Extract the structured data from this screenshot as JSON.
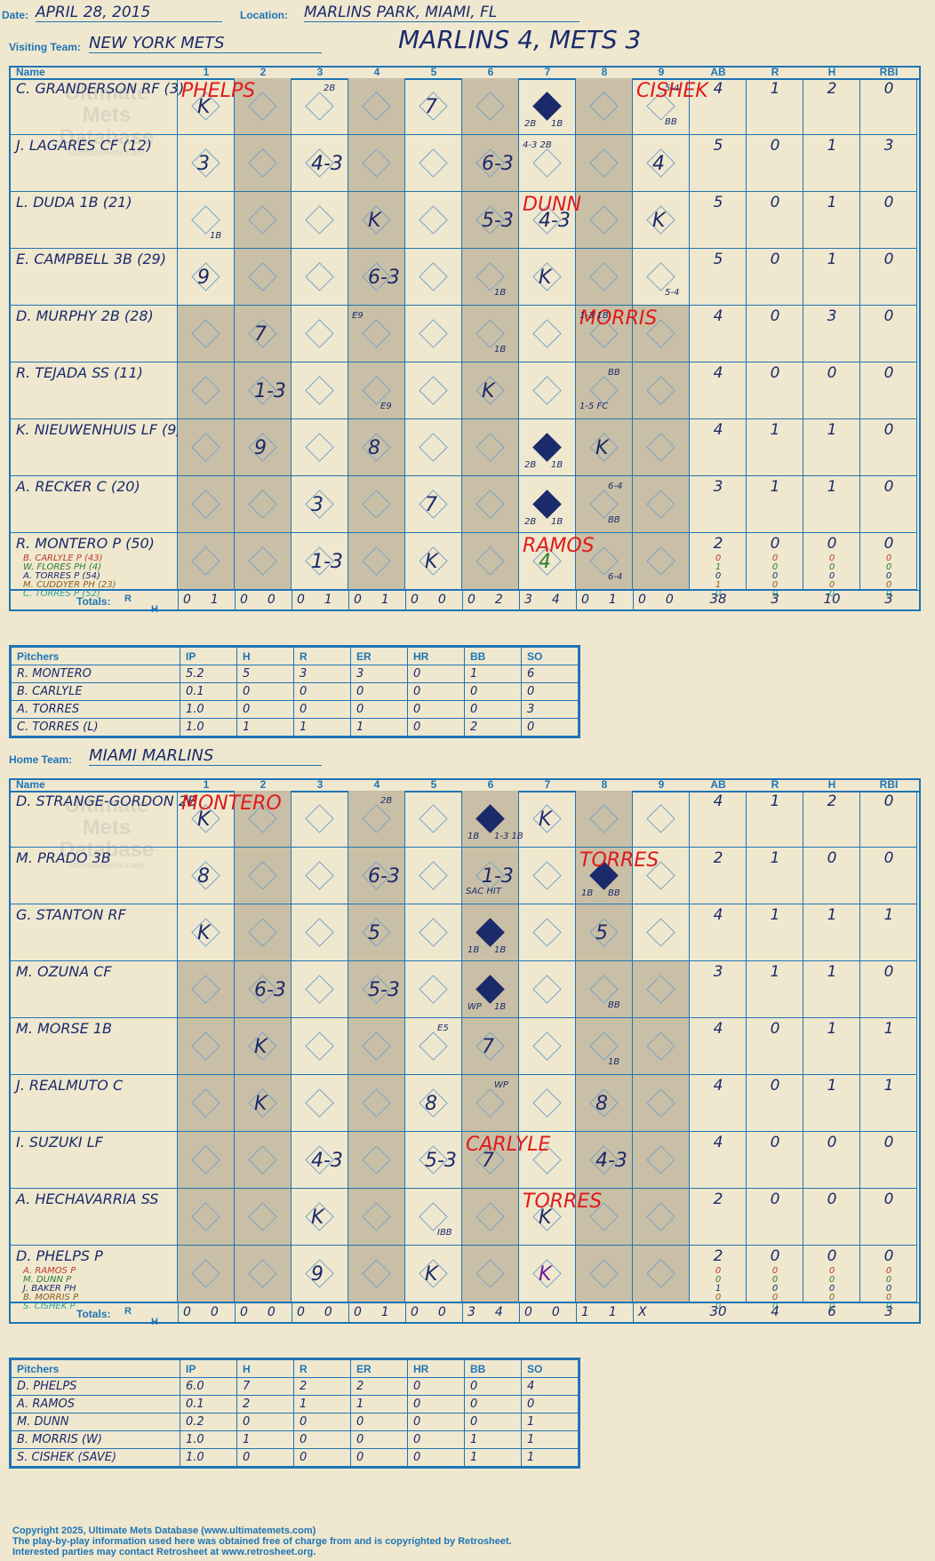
{
  "header": {
    "date_label": "Date:",
    "date": "APRIL 28, 2015",
    "location_label": "Location:",
    "location": "MARLINS PARK, MIAMI, FL",
    "visiting_label": "Visiting Team:",
    "visiting_team": "NEW YORK METS",
    "result": "MARLINS 4, METS 3",
    "home_label": "Home Team:",
    "home_team": "MIAMI MARLINS"
  },
  "columns": {
    "name": "Name",
    "innings": [
      "1",
      "2",
      "3",
      "4",
      "5",
      "6",
      "7",
      "8",
      "9"
    ],
    "stats": [
      "AB",
      "R",
      "H",
      "RBI"
    ]
  },
  "watermark": {
    "line1": "Ultimate",
    "line2": "Mets",
    "line3": "Database",
    "url": "ultimatemets.com"
  },
  "mets": {
    "batters": [
      {
        "name": "C. GRANDERSON RF (3)",
        "ab": "4",
        "r": "1",
        "h": "2",
        "rbi": "0"
      },
      {
        "name": "J. LAGARES CF (12)",
        "ab": "5",
        "r": "0",
        "h": "1",
        "rbi": "3"
      },
      {
        "name": "L. DUDA 1B (21)",
        "ab": "5",
        "r": "0",
        "h": "1",
        "rbi": "0"
      },
      {
        "name": "E. CAMPBELL 3B (29)",
        "ab": "5",
        "r": "0",
        "h": "1",
        "rbi": "0"
      },
      {
        "name": "D. MURPHY 2B (28)",
        "ab": "4",
        "r": "0",
        "h": "3",
        "rbi": "0"
      },
      {
        "name": "R. TEJADA SS (11)",
        "ab": "4",
        "r": "0",
        "h": "0",
        "rbi": "0"
      },
      {
        "name": "K. NIEUWENHUIS LF (9)",
        "ab": "4",
        "r": "1",
        "h": "1",
        "rbi": "0"
      },
      {
        "name": "A. RECKER C (20)",
        "ab": "3",
        "r": "1",
        "h": "1",
        "rbi": "0"
      },
      {
        "name": "R. MONTERO P (50)",
        "ab": "2",
        "r": "0",
        "h": "0",
        "rbi": "0"
      }
    ],
    "subs": [
      {
        "name": "B. CARLYLE P (43)",
        "color": "#c0392b",
        "ab": "0",
        "r": "0",
        "h": "0",
        "rbi": "0"
      },
      {
        "name": "W. FLORES PH (4)",
        "color": "#2e7d32",
        "ab": "1",
        "r": "0",
        "h": "0",
        "rbi": "0"
      },
      {
        "name": "A. TORRES P (54)",
        "color": "#1b2a6b",
        "ab": "0",
        "r": "0",
        "h": "0",
        "rbi": "0"
      },
      {
        "name": "M. CUDDYER PH (23)",
        "color": "#8d5a1b",
        "ab": "1",
        "r": "0",
        "h": "0",
        "rbi": "0"
      },
      {
        "name": "C. TORRES P (52)",
        "color": "#2aa198",
        "ab": "0",
        "r": "0",
        "h": "0",
        "rbi": "0"
      }
    ],
    "totals_label": "Totals:",
    "totals_rh": [
      [
        "0",
        "1"
      ],
      [
        "0",
        "0"
      ],
      [
        "0",
        "1"
      ],
      [
        "0",
        "1"
      ],
      [
        "0",
        "0"
      ],
      [
        "0",
        "2"
      ],
      [
        "3",
        "4"
      ],
      [
        "0",
        "1"
      ],
      [
        "0",
        "0"
      ]
    ],
    "totals_stats": [
      "38",
      "3",
      "10",
      "3"
    ],
    "pitchers": [
      {
        "name": "R. MONTERO",
        "ip": "5.2",
        "h": "5",
        "r": "3",
        "er": "3",
        "hr": "0",
        "bb": "1",
        "so": "6"
      },
      {
        "name": "B. CARLYLE",
        "ip": "0.1",
        "h": "0",
        "r": "0",
        "er": "0",
        "hr": "0",
        "bb": "0",
        "so": "0"
      },
      {
        "name": "A. TORRES",
        "ip": "1.0",
        "h": "0",
        "r": "0",
        "er": "0",
        "hr": "0",
        "bb": "0",
        "so": "3"
      },
      {
        "name": "C. TORRES (L)",
        "ip": "1.0",
        "h": "1",
        "r": "1",
        "er": "1",
        "hr": "0",
        "bb": "2",
        "so": "0"
      }
    ]
  },
  "marlins": {
    "batters": [
      {
        "name": "D. STRANGE-GORDON 2B",
        "ab": "4",
        "r": "1",
        "h": "2",
        "rbi": "0"
      },
      {
        "name": "M. PRADO 3B",
        "ab": "2",
        "r": "1",
        "h": "0",
        "rbi": "0"
      },
      {
        "name": "G. STANTON RF",
        "ab": "4",
        "r": "1",
        "h": "1",
        "rbi": "1"
      },
      {
        "name": "M. OZUNA CF",
        "ab": "3",
        "r": "1",
        "h": "1",
        "rbi": "0"
      },
      {
        "name": "M. MORSE 1B",
        "ab": "4",
        "r": "0",
        "h": "1",
        "rbi": "1"
      },
      {
        "name": "J. REALMUTO C",
        "ab": "4",
        "r": "0",
        "h": "1",
        "rbi": "1"
      },
      {
        "name": "I. SUZUKI LF",
        "ab": "4",
        "r": "0",
        "h": "0",
        "rbi": "0"
      },
      {
        "name": "A. HECHAVARRIA SS",
        "ab": "2",
        "r": "0",
        "h": "0",
        "rbi": "0"
      },
      {
        "name": "D. PHELPS P",
        "ab": "2",
        "r": "0",
        "h": "0",
        "rbi": "0"
      }
    ],
    "subs": [
      {
        "name": "A. RAMOS P",
        "color": "#c0392b",
        "ab": "0",
        "r": "0",
        "h": "0",
        "rbi": "0"
      },
      {
        "name": "M. DUNN P",
        "color": "#2e7d32",
        "ab": "0",
        "r": "0",
        "h": "0",
        "rbi": "0"
      },
      {
        "name": "J. BAKER PH",
        "color": "#1b2a6b",
        "ab": "1",
        "r": "0",
        "h": "0",
        "rbi": "0"
      },
      {
        "name": "B. MORRIS P",
        "color": "#8d5a1b",
        "ab": "0",
        "r": "0",
        "h": "0",
        "rbi": "0"
      },
      {
        "name": "S. CISHEK P",
        "color": "#2aa198",
        "ab": "0",
        "r": "0",
        "h": "0",
        "rbi": "0"
      }
    ],
    "totals_label": "Totals:",
    "totals_rh": [
      [
        "0",
        "0"
      ],
      [
        "0",
        "0"
      ],
      [
        "0",
        "0"
      ],
      [
        "0",
        "1"
      ],
      [
        "0",
        "0"
      ],
      [
        "3",
        "4"
      ],
      [
        "0",
        "0"
      ],
      [
        "1",
        "1"
      ],
      [
        "X",
        ""
      ]
    ],
    "totals_stats": [
      "30",
      "4",
      "6",
      "3"
    ],
    "pitchers": [
      {
        "name": "D. PHELPS",
        "ip": "6.0",
        "h": "7",
        "r": "2",
        "er": "2",
        "hr": "0",
        "bb": "0",
        "so": "4"
      },
      {
        "name": "A. RAMOS",
        "ip": "0.1",
        "h": "2",
        "r": "1",
        "er": "1",
        "hr": "0",
        "bb": "0",
        "so": "0"
      },
      {
        "name": "M. DUNN",
        "ip": "0.2",
        "h": "0",
        "r": "0",
        "er": "0",
        "hr": "0",
        "bb": "0",
        "so": "1"
      },
      {
        "name": "B. MORRIS (W)",
        "ip": "1.0",
        "h": "1",
        "r": "0",
        "er": "0",
        "hr": "0",
        "bb": "1",
        "so": "1"
      },
      {
        "name": "S. CISHEK (SAVE)",
        "ip": "1.0",
        "h": "0",
        "r": "0",
        "er": "0",
        "hr": "0",
        "bb": "1",
        "so": "1"
      }
    ]
  },
  "pitcher_headers": [
    "Pitchers",
    "IP",
    "H",
    "R",
    "ER",
    "HR",
    "BB",
    "SO"
  ],
  "rh_labels": {
    "r": "R",
    "h": "H"
  },
  "plays_mets": [
    {
      "row": 0,
      "inn": 0,
      "text": "K",
      "runs": false
    },
    {
      "row": 0,
      "inn": 0,
      "text": "PHELPS",
      "red": true,
      "pos": "top"
    },
    {
      "row": 0,
      "inn": 2,
      "text": "2B",
      "pos": "tr",
      "small": true
    },
    {
      "row": 0,
      "inn": 4,
      "text": "7"
    },
    {
      "row": 0,
      "inn": 6,
      "text": "",
      "runs": true,
      "notes": [
        "2B",
        "1B"
      ]
    },
    {
      "row": 0,
      "inn": 8,
      "text": "CISHEK",
      "red": true,
      "pos": "top"
    },
    {
      "row": 0,
      "inn": 8,
      "text": "BB",
      "pos": "br",
      "small": true
    },
    {
      "row": 0,
      "inn": 8,
      "text": "5-4",
      "pos": "tr",
      "small": true
    },
    {
      "row": 1,
      "inn": 0,
      "text": "3"
    },
    {
      "row": 1,
      "inn": 2,
      "text": "4-3"
    },
    {
      "row": 1,
      "inn": 5,
      "text": "6-3"
    },
    {
      "row": 1,
      "inn": 6,
      "text": "4-3 2B",
      "pos": "tl",
      "small": true
    },
    {
      "row": 1,
      "inn": 8,
      "text": "4"
    },
    {
      "row": 2,
      "inn": 0,
      "text": "1B",
      "pos": "br",
      "small": true
    },
    {
      "row": 2,
      "inn": 3,
      "text": "K"
    },
    {
      "row": 2,
      "inn": 5,
      "text": "5-3"
    },
    {
      "row": 2,
      "inn": 6,
      "text": "4-3"
    },
    {
      "row": 2,
      "inn": 6,
      "text": "DUNN",
      "red": true,
      "pos": "top"
    },
    {
      "row": 2,
      "inn": 8,
      "text": "K"
    },
    {
      "row": 3,
      "inn": 0,
      "text": "9"
    },
    {
      "row": 3,
      "inn": 3,
      "text": "6-3"
    },
    {
      "row": 3,
      "inn": 5,
      "text": "1B",
      "pos": "br",
      "small": true
    },
    {
      "row": 3,
      "inn": 6,
      "text": "K"
    },
    {
      "row": 3,
      "inn": 8,
      "text": "5-4",
      "pos": "br",
      "small": true
    },
    {
      "row": 4,
      "inn": 1,
      "text": "7"
    },
    {
      "row": 4,
      "inn": 3,
      "text": "E9",
      "pos": "tl",
      "small": true
    },
    {
      "row": 4,
      "inn": 5,
      "text": "1B",
      "pos": "br",
      "small": true
    },
    {
      "row": 4,
      "inn": 7,
      "text": "MORRIS",
      "red": true,
      "pos": "top"
    },
    {
      "row": 4,
      "inn": 7,
      "text": "1-3 1B",
      "pos": "tl",
      "small": true
    },
    {
      "row": 5,
      "inn": 1,
      "text": "1-3"
    },
    {
      "row": 5,
      "inn": 3,
      "text": "E9",
      "pos": "br",
      "small": true
    },
    {
      "row": 5,
      "inn": 5,
      "text": "K"
    },
    {
      "row": 5,
      "inn": 7,
      "text": "BB",
      "pos": "tr",
      "small": true
    },
    {
      "row": 5,
      "inn": 7,
      "text": "1-5 FC",
      "pos": "bl",
      "small": true
    },
    {
      "row": 6,
      "inn": 1,
      "text": "9"
    },
    {
      "row": 6,
      "inn": 3,
      "text": "8"
    },
    {
      "row": 6,
      "inn": 6,
      "text": "",
      "runs": true,
      "notes": [
        "2B",
        "1B"
      ]
    },
    {
      "row": 6,
      "inn": 7,
      "text": "K"
    },
    {
      "row": 7,
      "inn": 2,
      "text": "3"
    },
    {
      "row": 7,
      "inn": 4,
      "text": "7"
    },
    {
      "row": 7,
      "inn": 6,
      "text": "",
      "runs": true,
      "notes": [
        "2B",
        "1B"
      ]
    },
    {
      "row": 7,
      "inn": 7,
      "text": "6-4",
      "pos": "tr",
      "small": true
    },
    {
      "row": 7,
      "inn": 7,
      "text": "BB",
      "pos": "br",
      "small": true
    },
    {
      "row": 8,
      "inn": 2,
      "text": "1-3"
    },
    {
      "row": 8,
      "inn": 4,
      "text": "K"
    },
    {
      "row": 8,
      "inn": 6,
      "text": "4",
      "green": true
    },
    {
      "row": 8,
      "inn": 6,
      "text": "RAMOS",
      "red": true,
      "pos": "top"
    },
    {
      "row": 8,
      "inn": 7,
      "text": "6-4",
      "pos": "br",
      "small": true
    }
  ],
  "plays_marlins": [
    {
      "row": 0,
      "inn": 0,
      "text": "K"
    },
    {
      "row": 0,
      "inn": 0,
      "text": "MONTERO",
      "red": true,
      "pos": "top"
    },
    {
      "row": 0,
      "inn": 3,
      "text": "2B",
      "pos": "tr",
      "small": true
    },
    {
      "row": 0,
      "inn": 5,
      "text": "",
      "runs": true,
      "notes": [
        "1B",
        "1-3 1B"
      ]
    },
    {
      "row": 0,
      "inn": 6,
      "text": "K"
    },
    {
      "row": 1,
      "inn": 0,
      "text": "8"
    },
    {
      "row": 1,
      "inn": 3,
      "text": "6-3"
    },
    {
      "row": 1,
      "inn": 5,
      "text": "1-3"
    },
    {
      "row": 1,
      "inn": 5,
      "text": "SAC HIT",
      "pos": "bl",
      "small": true
    },
    {
      "row": 1,
      "inn": 7,
      "text": "",
      "runs": true,
      "notes": [
        "1B",
        "BB"
      ]
    },
    {
      "row": 1,
      "inn": 7,
      "text": "TORRES",
      "red": true,
      "pos": "top"
    },
    {
      "row": 2,
      "inn": 0,
      "text": "K"
    },
    {
      "row": 2,
      "inn": 3,
      "text": "5"
    },
    {
      "row": 2,
      "inn": 5,
      "text": "",
      "runs": true,
      "notes": [
        "1B",
        "1B"
      ]
    },
    {
      "row": 2,
      "inn": 7,
      "text": "5"
    },
    {
      "row": 3,
      "inn": 1,
      "text": "6-3"
    },
    {
      "row": 3,
      "inn": 3,
      "text": "5-3"
    },
    {
      "row": 3,
      "inn": 5,
      "text": "",
      "runs": true,
      "notes": [
        "WP",
        "1B"
      ]
    },
    {
      "row": 3,
      "inn": 7,
      "text": "BB",
      "pos": "br",
      "small": true
    },
    {
      "row": 4,
      "inn": 1,
      "text": "K"
    },
    {
      "row": 4,
      "inn": 4,
      "text": "E5",
      "pos": "tr",
      "small": true
    },
    {
      "row": 4,
      "inn": 5,
      "text": "7"
    },
    {
      "row": 4,
      "inn": 7,
      "text": "1B",
      "pos": "br",
      "small": true
    },
    {
      "row": 5,
      "inn": 1,
      "text": "K"
    },
    {
      "row": 5,
      "inn": 4,
      "text": "8"
    },
    {
      "row": 5,
      "inn": 5,
      "text": "WP",
      "pos": "tr",
      "small": true
    },
    {
      "row": 5,
      "inn": 7,
      "text": "8"
    },
    {
      "row": 6,
      "inn": 2,
      "text": "4-3"
    },
    {
      "row": 6,
      "inn": 4,
      "text": "5-3"
    },
    {
      "row": 6,
      "inn": 5,
      "text": "7"
    },
    {
      "row": 6,
      "inn": 5,
      "text": "CARLYLE",
      "red": true,
      "pos": "top"
    },
    {
      "row": 6,
      "inn": 7,
      "text": "4-3"
    },
    {
      "row": 7,
      "inn": 2,
      "text": "K"
    },
    {
      "row": 7,
      "inn": 4,
      "text": "IBB",
      "pos": "br",
      "small": true
    },
    {
      "row": 7,
      "inn": 6,
      "text": "K"
    },
    {
      "row": 7,
      "inn": 6,
      "text": "TORRES",
      "red": true,
      "pos": "top"
    },
    {
      "row": 8,
      "inn": 2,
      "text": "9"
    },
    {
      "row": 8,
      "inn": 4,
      "text": "K"
    },
    {
      "row": 8,
      "inn": 6,
      "text": "K",
      "purple": true
    }
  ],
  "footer": {
    "line1": "Copyright 2025, Ultimate Mets Database (www.ultimatemets.com)",
    "line2": "The play-by-play information used here was obtained free of charge from and is copyrighted by Retrosheet.",
    "line3": "Interested parties may contact Retrosheet at www.retrosheet.org."
  }
}
